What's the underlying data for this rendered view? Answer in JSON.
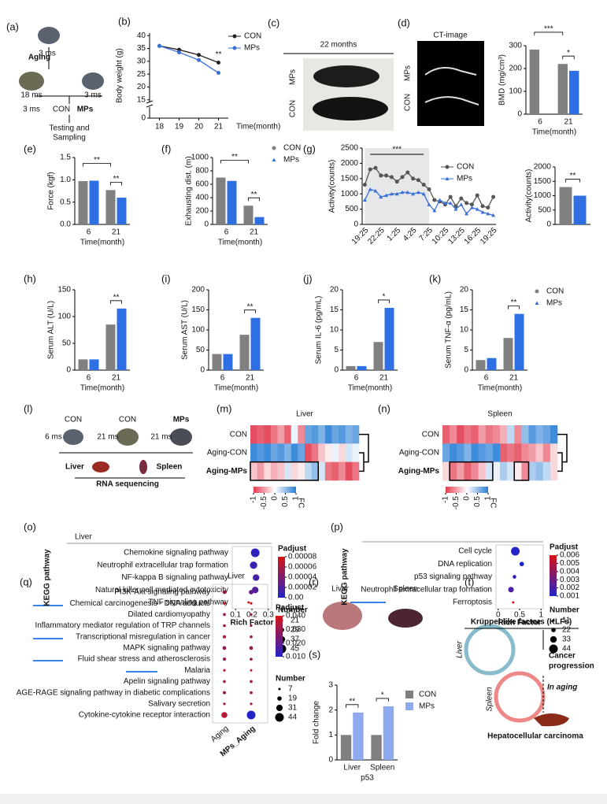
{
  "panels": {
    "labels": [
      "(a)",
      "(b)",
      "(c)",
      "(d)",
      "(e)",
      "(f)",
      "(g)",
      "(h)",
      "(i)",
      "(j)",
      "(k)",
      "(l)",
      "(m)",
      "(n)",
      "(o)",
      "(p)",
      "(q)",
      "(r)",
      "(s)",
      "(t)"
    ],
    "a": [
      "3 ms",
      "Aging",
      "18 ms",
      "3 ms",
      "3 ms",
      "CON",
      "MPs",
      "Testing and",
      "Sampling"
    ],
    "c": [
      "22 months",
      "MPs",
      "CON"
    ],
    "d": [
      "CT-image",
      "MPs",
      "CON"
    ],
    "l": [
      "CON",
      "CON",
      "MPs",
      "6 ms",
      "21 ms",
      "21 ms",
      "Liver",
      "Spleen",
      "RNA sequencing"
    ],
    "r": [
      "Liver",
      "Spleen"
    ],
    "t": [
      "Krüppel-like factors (KLFs)",
      "Cancer",
      "progression",
      "In aging",
      "Hepatocellular carcinoma",
      "Liver",
      "Spleen"
    ]
  },
  "chart_data": [
    {
      "type": "line",
      "ylabel": "Body weight (g)",
      "xlabel": "Time(month)",
      "x": [
        18,
        19,
        20,
        21
      ],
      "xlim": [
        17.5,
        21.5
      ],
      "xticks": [
        18,
        19,
        20,
        21
      ],
      "ylim": [
        14,
        41
      ],
      "yticks": [
        15,
        20,
        25,
        30,
        35,
        40
      ],
      "ybreak_ticks": [
        0
      ],
      "legend": true,
      "annotations": [
        "**"
      ],
      "series": [
        {
          "name": "CON",
          "color": "#222222",
          "marker": "circle",
          "values": [
            36,
            34.5,
            32.5,
            29.5
          ]
        },
        {
          "name": "MPs",
          "color": "#3a6fd8",
          "marker": "circle",
          "values": [
            36,
            33.5,
            30.5,
            25.5
          ]
        }
      ]
    },
    {
      "type": "bar",
      "ylabel": "BMD (mg/cm³)",
      "xlabel": "Time(month)",
      "categories": [
        "6",
        "21"
      ],
      "ylim": [
        0,
        300
      ],
      "yticks": [
        0,
        100,
        200,
        300
      ],
      "annotations": [
        "***",
        "*"
      ],
      "series": [
        {
          "color": "#808080",
          "values": [
            283,
            220
          ]
        },
        {
          "color": "#2f6fe4",
          "values": [
            null,
            190
          ]
        }
      ]
    },
    {
      "type": "bar",
      "ylabel": "Force (kgf)",
      "xlabel": "Time(month)",
      "categories": [
        "6",
        "21"
      ],
      "ylim": [
        0,
        1.5
      ],
      "yticks": [
        {
          "value": 0,
          "label": "0.0"
        },
        0.5,
        {
          "value": 1,
          "label": "1.0"
        },
        1.5
      ],
      "annotations": [
        "**",
        "**"
      ],
      "series": [
        {
          "color": "#808080",
          "values": [
            0.97,
            0.77
          ]
        },
        {
          "color": "#2f6fe4",
          "values": [
            0.98,
            0.6
          ]
        }
      ]
    },
    {
      "type": "bar",
      "ylabel": "Exhausting dist. (m)",
      "xlabel": "Time(month)",
      "categories": [
        "6",
        "21"
      ],
      "ylim": [
        0,
        1000
      ],
      "yticks": [
        0,
        200,
        400,
        600,
        800,
        1000
      ],
      "annotations": [
        "**",
        "**"
      ],
      "legend": true,
      "series": [
        {
          "name": "CON",
          "color": "#808080",
          "marker": "circle",
          "values": [
            700,
            280
          ]
        },
        {
          "name": "MPs",
          "color": "#2f6fe4",
          "marker": "triangle",
          "values": [
            650,
            110
          ]
        }
      ]
    },
    {
      "type": "line",
      "ylabel": "Activity(counts)",
      "categories": [
        "19:25",
        null,
        null,
        "22:25",
        null,
        null,
        "1:25",
        null,
        null,
        "4:25",
        null,
        null,
        "7:25",
        null,
        null,
        "10:25",
        null,
        null,
        "13:25",
        null,
        null,
        "16:25",
        null,
        null,
        "19:25"
      ],
      "ylim": [
        0,
        2500
      ],
      "yticks": [
        0,
        500,
        1000,
        1500,
        2000,
        2500
      ],
      "legend": true,
      "annotations": [
        "***"
      ],
      "series": [
        {
          "name": "CON",
          "color": "#555555",
          "marker": "circle",
          "values": [
            1300,
            1800,
            1850,
            1600,
            1600,
            1550,
            1400,
            1550,
            1700,
            1500,
            1450,
            1300,
            1150,
            800,
            750,
            650,
            900,
            600,
            850,
            700,
            650,
            950,
            600,
            550,
            900
          ]
        },
        {
          "name": "MPs",
          "color": "#3a6fd8",
          "marker": "triangle",
          "values": [
            800,
            1150,
            1100,
            900,
            950,
            1000,
            1000,
            1050,
            1050,
            1000,
            1050,
            1000,
            650,
            450,
            800,
            700,
            700,
            500,
            650,
            350,
            550,
            500,
            400,
            350,
            300
          ]
        }
      ]
    },
    {
      "type": "bar",
      "ylabel": "Activity(counts)",
      "categories": [
        null
      ],
      "ylim": [
        0,
        2000
      ],
      "yticks": [
        0,
        500,
        1000,
        1500,
        2000
      ],
      "annotations": [
        "**"
      ],
      "series": [
        {
          "color": "#808080",
          "values": [
            1300
          ]
        },
        {
          "color": "#2f6fe4",
          "values": [
            1000
          ]
        }
      ]
    },
    {
      "type": "bar",
      "ylabel": "Serum ALT (U/L)",
      "xlabel": "Time(month)",
      "categories": [
        "6",
        "21"
      ],
      "ylim": [
        0,
        150
      ],
      "yticks": [
        0,
        50,
        100,
        150
      ],
      "annotations": [
        "**"
      ],
      "series": [
        {
          "color": "#808080",
          "values": [
            20,
            85
          ]
        },
        {
          "color": "#2f6fe4",
          "values": [
            20,
            115
          ]
        }
      ]
    },
    {
      "type": "bar",
      "ylabel": "Serum AST (U/L)",
      "xlabel": "Time(month)",
      "categories": [
        "6",
        "21"
      ],
      "ylim": [
        0,
        200
      ],
      "yticks": [
        0,
        50,
        100,
        150,
        200
      ],
      "annotations": [
        "**"
      ],
      "series": [
        {
          "color": "#808080",
          "values": [
            40,
            88
          ]
        },
        {
          "color": "#2f6fe4",
          "values": [
            40,
            130
          ]
        }
      ]
    },
    {
      "type": "bar",
      "ylabel": "Serum IL-6 (pg/mL)",
      "xlabel": "Time(month)",
      "categories": [
        "6",
        "21"
      ],
      "ylim": [
        0,
        20
      ],
      "yticks": [
        0,
        5,
        10,
        15,
        20
      ],
      "annotations": [
        "*"
      ],
      "series": [
        {
          "color": "#808080",
          "values": [
            1,
            7
          ]
        },
        {
          "color": "#2f6fe4",
          "values": [
            1,
            15.5
          ]
        }
      ]
    },
    {
      "type": "bar",
      "ylabel": "Serum TNF-α (pg/mL)",
      "xlabel": "Time(month)",
      "categories": [
        "6",
        "21"
      ],
      "ylim": [
        0,
        20
      ],
      "yticks": [
        0,
        5,
        10,
        15,
        20
      ],
      "annotations": [
        "**"
      ],
      "legend": true,
      "series": [
        {
          "name": "CON",
          "color": "#808080",
          "marker": "circle",
          "values": [
            2.5,
            8
          ]
        },
        {
          "name": "MPs",
          "color": "#2f6fe4",
          "marker": "triangle",
          "values": [
            3,
            14
          ]
        }
      ]
    },
    {
      "type": "heatmap",
      "title": "Liver",
      "rows": [
        "CON",
        "Aging-CON",
        "Aging-MPs"
      ],
      "clim": [
        -1,
        1
      ],
      "cticks": [
        -1,
        -0.5,
        0,
        0.5,
        1
      ],
      "clabel": "FC",
      "colors": [
        "#e23a4e",
        "#ffffff",
        "#2a7fd6"
      ],
      "values": [
        [
          -0.9,
          -0.8,
          -0.9,
          -0.7,
          -0.5,
          -0.8,
          0.1,
          -0.6,
          0.7,
          0.8,
          0.6,
          0.9,
          0.7,
          0.8,
          0.6,
          0.7
        ],
        [
          0.9,
          0.8,
          0.9,
          0.7,
          0.8,
          0.6,
          0.9,
          0.7,
          -0.9,
          -0.7,
          -0.3,
          -0.1,
          0.1,
          -0.2,
          0.2,
          0.1
        ],
        [
          -0.3,
          -0.5,
          -0.2,
          -0.4,
          -0.3,
          0.2,
          -0.2,
          -0.1,
          0.3,
          0.5,
          0.2,
          -0.7,
          -0.8,
          -0.6,
          -0.9,
          -0.7
        ]
      ]
    },
    {
      "type": "heatmap",
      "title": "Spleen",
      "rows": [
        "CON",
        "Aging-CON",
        "Aging-MPs"
      ],
      "clim": [
        -1,
        1
      ],
      "cticks": [
        -1,
        -0.5,
        0,
        0.5,
        1
      ],
      "clabel": "FC",
      "colors": [
        "#e23a4e",
        "#ffffff",
        "#2a7fd6"
      ],
      "values": [
        [
          -0.8,
          -0.6,
          -0.9,
          -0.7,
          -0.8,
          -0.5,
          -0.7,
          -0.6,
          -0.4,
          0.3,
          -0.6,
          0.5,
          0.8,
          0.6,
          0.7,
          0.9
        ],
        [
          0.7,
          0.9,
          0.8,
          0.6,
          0.9,
          0.8,
          0.7,
          0.9,
          -0.8,
          -0.7,
          -0.8,
          -0.6,
          -0.5,
          -0.3,
          -0.6,
          -0.2
        ],
        [
          -0.2,
          -0.7,
          -0.5,
          -0.8,
          -0.6,
          -0.3,
          0.2,
          0.1,
          0.4,
          0.2,
          -0.1,
          -0.6,
          0.4,
          0.5,
          0.3,
          -0.2
        ]
      ]
    },
    {
      "type": "dot",
      "title": "Liver",
      "ylabel": "KEGG pathway",
      "xlabel": "Rich Factor",
      "categories": [
        "Chemokine signaling pathway",
        "Neutrophil extracellular trap formation",
        "NF-kappa B signaling pathway",
        "Natural killer cell mediated cytotoxicity",
        "TNF signaling pathway"
      ],
      "values": [
        0.22,
        0.21,
        0.225,
        0.22,
        0.18
      ],
      "padjust": [
        5e-06,
        1e-05,
        1.5e-05,
        2e-05,
        8e-05
      ],
      "counts": [
        45,
        40,
        37,
        37,
        21
      ],
      "xlim": [
        0.08,
        0.32
      ],
      "xticks": [
        0.1,
        0.2,
        0.3
      ],
      "padjust_title": "Padjust",
      "padjust_ticks": [
        8e-05,
        6e-05,
        4e-05,
        2e-05,
        {
          "value": 0,
          "label": "0.00"
        }
      ],
      "count_title": "Number",
      "count_ticks": [
        21,
        29,
        37,
        45
      ],
      "colormap": [
        "#2323c8",
        "#d81414"
      ]
    },
    {
      "type": "dot",
      "ylabel": "KEGG pathway",
      "xlabel": "Rich Factor",
      "categories": [
        "Cell cycle",
        "DNA replication",
        "p53 signaling pathway",
        "Neutrophil extracellular trap formation",
        "Ferroptosis"
      ],
      "values": [
        0.4,
        0.55,
        0.38,
        0.3,
        0.35
      ],
      "padjust": [
        0.0005,
        0.001,
        0.0015,
        0.002,
        0.006
      ],
      "counts": [
        44,
        22,
        18,
        28,
        11
      ],
      "xlim": [
        -0.05,
        1.05
      ],
      "xticks": [
        0,
        0.5,
        1
      ],
      "padjust_title": "Padjust",
      "padjust_ticks": [
        0.006,
        0.005,
        0.004,
        0.003,
        0.002,
        0.001
      ],
      "count_title": "Number",
      "count_ticks": [
        11,
        22,
        33,
        44
      ],
      "colormap": [
        "#2323c8",
        "#d81414"
      ]
    },
    {
      "type": "dotmatrix",
      "title": "Liver",
      "categories": [
        "PI3K-Akt signaling pathway",
        "Chemical carcinogenesis - DNA adducts",
        "Dilated cardiomyopathy",
        "Inflammatory mediator regulation of TRP channels",
        "Transcriptional misregulation in cancer",
        "MAPK signaling pathway",
        "Fluid shear stress and atherosclerosis",
        "Malaria",
        "Apelin signaling pathway",
        "AGE-RAGE signaling pathway in diabetic complications",
        "Salivary secretion",
        "Cytokine-cytokine receptor interaction"
      ],
      "series": [
        {
          "name": "Aging",
          "padjust": [
            0.03,
            0.035,
            0.03,
            0.03,
            0.035,
            0.03,
            0.03,
            0.035,
            0.03,
            0.03,
            0.03,
            0.035
          ],
          "counts": [
            15,
            10,
            10,
            10,
            12,
            15,
            12,
            8,
            10,
            12,
            8,
            28
          ]
        },
        {
          "name": "MPs_Aging",
          "padjust": [
            0.02,
            0.035,
            0.03,
            0.03,
            0.03,
            0.03,
            0.03,
            0.035,
            0.03,
            0.03,
            0.03,
            0.01
          ],
          "counts": [
            20,
            8,
            8,
            8,
            10,
            15,
            10,
            7,
            10,
            10,
            8,
            44
          ]
        }
      ],
      "padjust_title": "Padjust",
      "padjust_ticks": [
        {
          "value": 0.04,
          "label": "0.040"
        },
        {
          "value": 0.03,
          "label": "0.030"
        },
        {
          "value": 0.02,
          "label": "0.020"
        },
        {
          "value": 0.01,
          "label": "0.010"
        }
      ],
      "count_title": "Number",
      "count_ticks": [
        7,
        19,
        31,
        44
      ],
      "colormap": [
        "#2323c8",
        "#d81414"
      ]
    },
    {
      "type": "bar",
      "ylabel": "Fold change",
      "xlabel": "p53",
      "categories": [
        "Liver",
        "Spleen"
      ],
      "ylim": [
        0,
        3
      ],
      "yticks": [
        0,
        1,
        2,
        3
      ],
      "annotations": [
        "**",
        "*"
      ],
      "legend": true,
      "bracket_each": true,
      "series": [
        {
          "name": "CON",
          "color": "#7f7f7f",
          "marker": "square",
          "values": [
            1,
            1
          ]
        },
        {
          "name": "MPs",
          "color": "#8fa9ef",
          "marker": "square",
          "values": [
            1.9,
            2.15
          ]
        }
      ]
    }
  ]
}
